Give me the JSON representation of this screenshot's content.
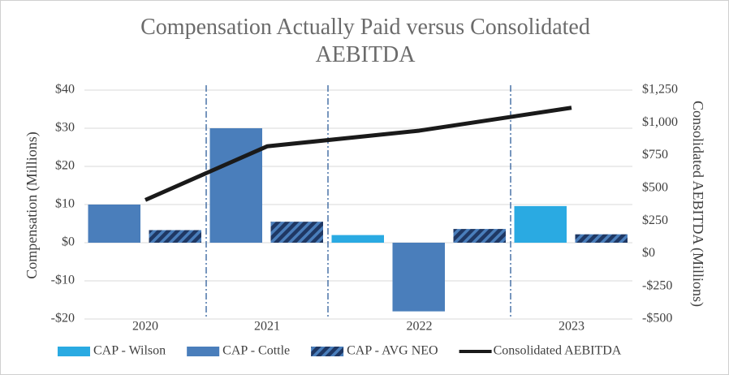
{
  "chart_data": {
    "type": "bar",
    "title": "Compensation Actually Paid versus Consolidated AEBITDA",
    "y_label": "Compensation (Millions)",
    "y2_label": "Consolidated AEBITDA (Millions)",
    "categories": [
      "2020",
      "2021",
      "2022",
      "2023"
    ],
    "series": [
      {
        "name": "CAP - Wilson",
        "color": "#2aaae2",
        "values": [
          null,
          null,
          2,
          9.6
        ]
      },
      {
        "name": "CAP - Cottle",
        "color": "#4a7ebb",
        "values": [
          10,
          30,
          -18,
          null
        ]
      },
      {
        "name": "CAP - AVG NEO",
        "color": "#1f3864",
        "pattern": "hatch",
        "values": [
          3.3,
          5.5,
          3.6,
          2.2
        ]
      },
      {
        "name": "Consolidated AEBITDA",
        "type": "line",
        "axis": "y2",
        "color": "#1a1a1a",
        "values": [
          410,
          820,
          940,
          1115
        ]
      }
    ],
    "ylim": [
      -20,
      40
    ],
    "yticks": [
      {
        "value": -20,
        "label": "-$20"
      },
      {
        "value": -10,
        "label": "-$10"
      },
      {
        "value": 0,
        "label": "$0"
      },
      {
        "value": 10,
        "label": "$10"
      },
      {
        "value": 20,
        "label": "$20"
      },
      {
        "value": 30,
        "label": "$30"
      },
      {
        "value": 40,
        "label": "$40"
      }
    ],
    "y2lim": [
      -500,
      1250
    ],
    "y2ticks": [
      {
        "value": -500,
        "label": "-$500"
      },
      {
        "value": -250,
        "label": "-$250"
      },
      {
        "value": 0,
        "label": "$0"
      },
      {
        "value": 250,
        "label": "$250"
      },
      {
        "value": 500,
        "label": "$500"
      },
      {
        "value": 750,
        "label": "$750"
      },
      {
        "value": 1000,
        "label": "$1,000"
      },
      {
        "value": 1250,
        "label": "$1,250"
      }
    ],
    "grid": true,
    "category_separators": true,
    "legend": "bottom"
  }
}
